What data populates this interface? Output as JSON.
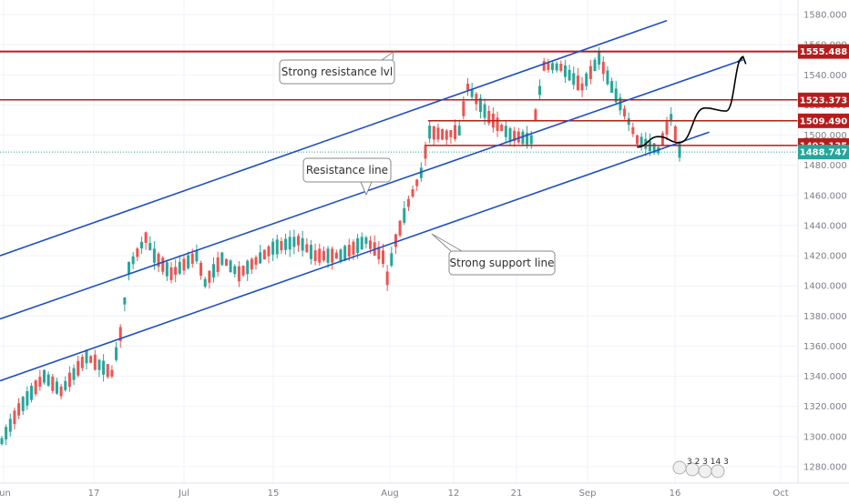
{
  "chart_data": {
    "type": "candlestick",
    "x_tick_labels": [
      "Jun",
      "17",
      "Jul",
      "15",
      "Aug",
      "12",
      "21",
      "Sep",
      "16",
      "Oct"
    ],
    "y_tick_labels": [
      "1280.000",
      "1300.000",
      "1320.000",
      "1340.000",
      "1360.000",
      "1380.000",
      "1400.000",
      "1420.000",
      "1440.000",
      "1460.000",
      "1480.000",
      "1500.000",
      "1520.000",
      "1540.000",
      "1560.000",
      "1580.000"
    ],
    "ylim": [
      1270,
      1587
    ],
    "grid": true,
    "last_price": {
      "value": 1488.747,
      "label": "1488.747",
      "color": "#26a69a"
    },
    "horizontal_levels": [
      {
        "value": 1555.488,
        "label": "1555.488",
        "color": "#b71c1c"
      },
      {
        "value": 1523.373,
        "label": "1523.373",
        "color": "#b71c1c"
      },
      {
        "value": 1509.49,
        "label": "1509.490",
        "color": "#b71c1c"
      },
      {
        "value": 1493.135,
        "label": "1493.135",
        "color": "#b71c1c"
      }
    ],
    "channel_lines": [
      {
        "role": "upper-channel",
        "color": "#1e4fc4",
        "from": [
          0,
          1420
        ],
        "to": [
          157,
          1576
        ]
      },
      {
        "role": "middle-channel",
        "color": "#1e4fc4",
        "from": [
          0,
          1378
        ],
        "to": [
          175,
          1550
        ]
      },
      {
        "role": "lower-channel",
        "color": "#1e4fc4",
        "from": [
          0,
          1337
        ],
        "to": [
          167,
          1502
        ]
      }
    ],
    "annotations": [
      {
        "text": "Strong resistance lvl"
      },
      {
        "text": "Resistance line"
      },
      {
        "text": "Strong support line"
      }
    ],
    "projection": {
      "color": "#000000",
      "points": [
        [
          150,
          1492
        ],
        [
          155,
          1499
        ],
        [
          160,
          1495
        ],
        [
          166,
          1518
        ],
        [
          171,
          1516
        ],
        [
          175,
          1552
        ]
      ]
    },
    "events_badge": {
      "text": "3 2 3 14 3"
    },
    "colors": {
      "up": "#26a69a",
      "down": "#ef5350"
    }
  }
}
